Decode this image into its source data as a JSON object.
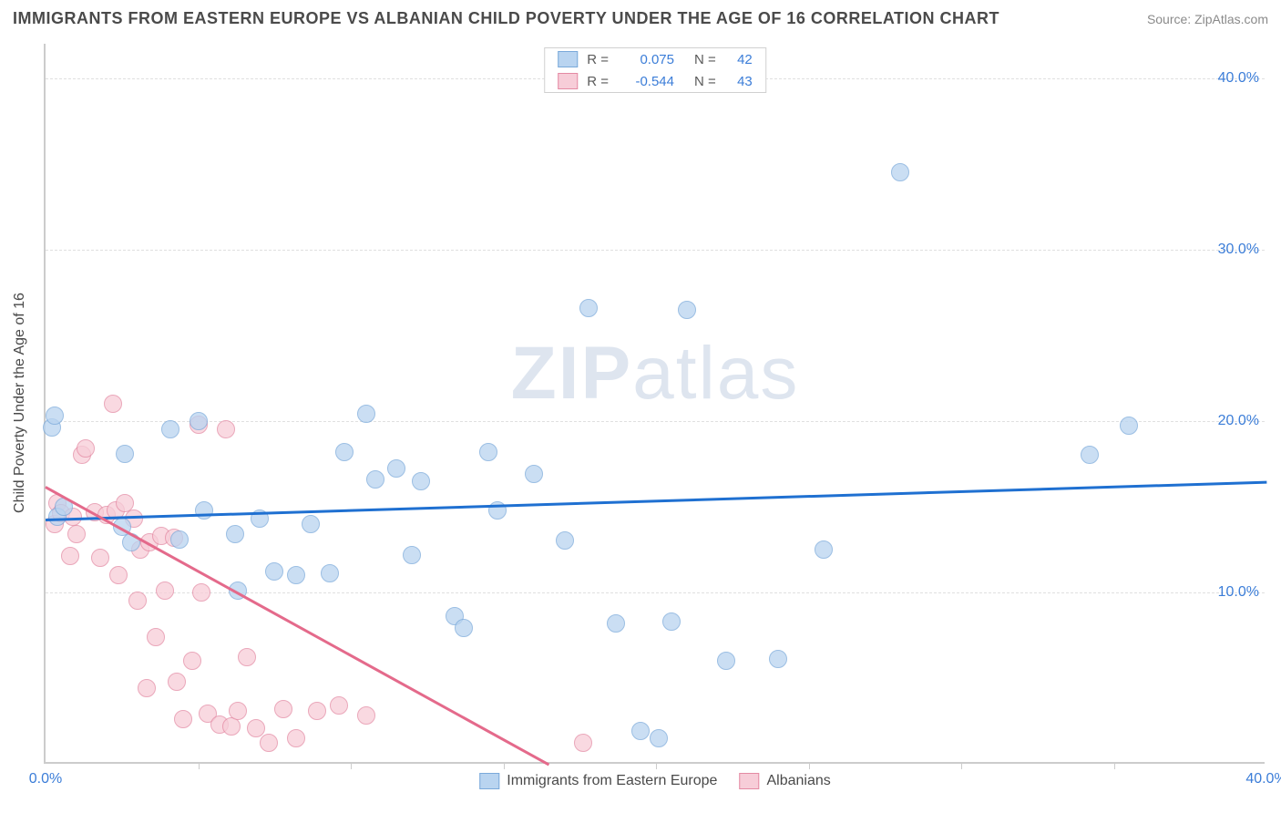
{
  "header": {
    "title": "IMMIGRANTS FROM EASTERN EUROPE VS ALBANIAN CHILD POVERTY UNDER THE AGE OF 16 CORRELATION CHART",
    "source": "Source: ZipAtlas.com"
  },
  "watermark": {
    "part1": "ZIP",
    "part2": "atlas"
  },
  "chart": {
    "ylabel": "Child Poverty Under the Age of 16",
    "x_min": 0.0,
    "x_max": 40.0,
    "y_min": 0.0,
    "y_max": 42.0,
    "x_ticks": [
      0.0,
      40.0
    ],
    "x_marks": [
      5,
      10,
      15,
      20,
      25,
      30,
      35
    ],
    "y_ticks": [
      10.0,
      20.0,
      30.0,
      40.0
    ],
    "marker_radius": 10,
    "background": "#ffffff",
    "grid_color": "#e0e0e0",
    "tick_color": "#3b7dd8",
    "series": [
      {
        "id": "eastern_europe",
        "label": "Immigrants from Eastern Europe",
        "R": "0.075",
        "N": "42",
        "fill": "#b9d4f0",
        "stroke": "#7aa9da",
        "opacity": 0.75,
        "trend": {
          "x1": 0.0,
          "y1": 14.3,
          "x2": 40.0,
          "y2": 16.5,
          "color": "#1f70d1",
          "width": 2.5
        },
        "points": [
          {
            "x": 0.2,
            "y": 19.6
          },
          {
            "x": 0.3,
            "y": 20.3
          },
          {
            "x": 0.4,
            "y": 14.4
          },
          {
            "x": 0.6,
            "y": 15.0
          },
          {
            "x": 2.5,
            "y": 13.8
          },
          {
            "x": 2.6,
            "y": 18.1
          },
          {
            "x": 2.8,
            "y": 12.9
          },
          {
            "x": 4.1,
            "y": 19.5
          },
          {
            "x": 4.4,
            "y": 13.1
          },
          {
            "x": 5.0,
            "y": 20.0
          },
          {
            "x": 5.2,
            "y": 14.8
          },
          {
            "x": 6.2,
            "y": 13.4
          },
          {
            "x": 6.3,
            "y": 10.1
          },
          {
            "x": 7.0,
            "y": 14.3
          },
          {
            "x": 7.5,
            "y": 11.2
          },
          {
            "x": 8.2,
            "y": 11.0
          },
          {
            "x": 8.7,
            "y": 14.0
          },
          {
            "x": 9.3,
            "y": 11.1
          },
          {
            "x": 9.8,
            "y": 18.2
          },
          {
            "x": 10.5,
            "y": 20.4
          },
          {
            "x": 10.8,
            "y": 16.6
          },
          {
            "x": 11.5,
            "y": 17.2
          },
          {
            "x": 12.0,
            "y": 12.2
          },
          {
            "x": 12.3,
            "y": 16.5
          },
          {
            "x": 13.4,
            "y": 8.6
          },
          {
            "x": 13.7,
            "y": 7.9
          },
          {
            "x": 14.5,
            "y": 18.2
          },
          {
            "x": 14.8,
            "y": 14.8
          },
          {
            "x": 16.0,
            "y": 16.9
          },
          {
            "x": 17.0,
            "y": 13.0
          },
          {
            "x": 17.8,
            "y": 26.6
          },
          {
            "x": 18.7,
            "y": 8.2
          },
          {
            "x": 19.5,
            "y": 1.9
          },
          {
            "x": 20.1,
            "y": 1.5
          },
          {
            "x": 20.5,
            "y": 8.3
          },
          {
            "x": 21.0,
            "y": 26.5
          },
          {
            "x": 22.3,
            "y": 6.0
          },
          {
            "x": 24.0,
            "y": 6.1
          },
          {
            "x": 25.5,
            "y": 12.5
          },
          {
            "x": 28.0,
            "y": 34.5
          },
          {
            "x": 34.2,
            "y": 18.0
          },
          {
            "x": 35.5,
            "y": 19.7
          }
        ]
      },
      {
        "id": "albanians",
        "label": "Albanians",
        "R": "-0.544",
        "N": "43",
        "fill": "#f7cdd8",
        "stroke": "#e48aa3",
        "opacity": 0.75,
        "trend": {
          "x1": 0.0,
          "y1": 16.2,
          "x2": 16.5,
          "y2": 0.0,
          "color": "#e46a8b",
          "width": 2.5
        },
        "points": [
          {
            "x": 0.3,
            "y": 14.0
          },
          {
            "x": 0.4,
            "y": 15.2
          },
          {
            "x": 0.5,
            "y": 14.6
          },
          {
            "x": 0.8,
            "y": 12.1
          },
          {
            "x": 0.9,
            "y": 14.4
          },
          {
            "x": 1.0,
            "y": 13.4
          },
          {
            "x": 1.2,
            "y": 18.0
          },
          {
            "x": 1.3,
            "y": 18.4
          },
          {
            "x": 1.6,
            "y": 14.7
          },
          {
            "x": 1.8,
            "y": 12.0
          },
          {
            "x": 2.0,
            "y": 14.5
          },
          {
            "x": 2.2,
            "y": 21.0
          },
          {
            "x": 2.3,
            "y": 14.8
          },
          {
            "x": 2.4,
            "y": 11.0
          },
          {
            "x": 2.6,
            "y": 15.2
          },
          {
            "x": 2.9,
            "y": 14.3
          },
          {
            "x": 3.0,
            "y": 9.5
          },
          {
            "x": 3.1,
            "y": 12.5
          },
          {
            "x": 3.3,
            "y": 4.4
          },
          {
            "x": 3.4,
            "y": 12.9
          },
          {
            "x": 3.6,
            "y": 7.4
          },
          {
            "x": 3.8,
            "y": 13.3
          },
          {
            "x": 3.9,
            "y": 10.1
          },
          {
            "x": 4.2,
            "y": 13.2
          },
          {
            "x": 4.3,
            "y": 4.8
          },
          {
            "x": 4.5,
            "y": 2.6
          },
          {
            "x": 4.8,
            "y": 6.0
          },
          {
            "x": 5.0,
            "y": 19.8
          },
          {
            "x": 5.1,
            "y": 10.0
          },
          {
            "x": 5.3,
            "y": 2.9
          },
          {
            "x": 5.7,
            "y": 2.3
          },
          {
            "x": 5.9,
            "y": 19.5
          },
          {
            "x": 6.1,
            "y": 2.2
          },
          {
            "x": 6.3,
            "y": 3.1
          },
          {
            "x": 6.6,
            "y": 6.2
          },
          {
            "x": 6.9,
            "y": 2.1
          },
          {
            "x": 7.3,
            "y": 1.2
          },
          {
            "x": 7.8,
            "y": 3.2
          },
          {
            "x": 8.2,
            "y": 1.5
          },
          {
            "x": 8.9,
            "y": 3.1
          },
          {
            "x": 9.6,
            "y": 3.4
          },
          {
            "x": 10.5,
            "y": 2.8
          },
          {
            "x": 17.6,
            "y": 1.2
          }
        ]
      }
    ],
    "legend_top": {
      "R_label": "R =",
      "N_label": "N ="
    },
    "legend_bottom_labels": [
      "Immigrants from Eastern Europe",
      "Albanians"
    ]
  }
}
